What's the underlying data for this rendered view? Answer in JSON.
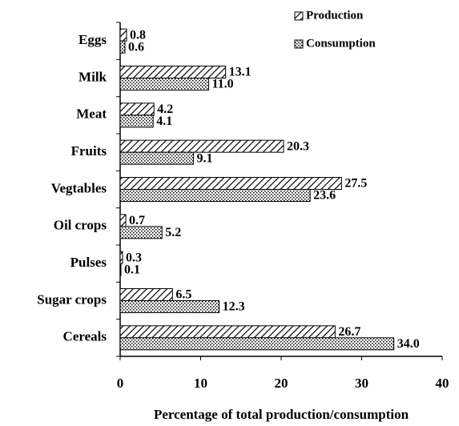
{
  "chart_data": {
    "type": "hbar",
    "categories": [
      "Eggs",
      "Milk",
      "Meat",
      "Fruits",
      "Vegtables",
      "Oil crops",
      "Pulses",
      "Sugar crops",
      "Cereals"
    ],
    "series": [
      {
        "name": "Production",
        "color": "#000000",
        "pattern": "hatch",
        "values": [
          0.8,
          13.1,
          4.2,
          20.3,
          27.5,
          0.7,
          0.3,
          6.5,
          26.7
        ],
        "value_labels": [
          "0.8",
          "13.1",
          "4.2",
          "20.3",
          "27.5",
          "0.7",
          "0.3",
          "6.5",
          "26.7"
        ]
      },
      {
        "name": "Consumption",
        "color": "#000000",
        "pattern": "dots",
        "values": [
          0.6,
          11.0,
          4.1,
          9.1,
          23.6,
          5.2,
          0.1,
          12.3,
          34.0
        ],
        "value_labels": [
          "0.6",
          "11.0",
          "4.1",
          "9.1",
          "23.6",
          "5.2",
          "0.1",
          "12.3",
          "34.0"
        ]
      }
    ],
    "xlim": [
      0,
      40
    ],
    "xticks": [
      0,
      10,
      20,
      30,
      40
    ],
    "xlabel": "Percentage of total production/consumption",
    "legend": "top-right"
  }
}
